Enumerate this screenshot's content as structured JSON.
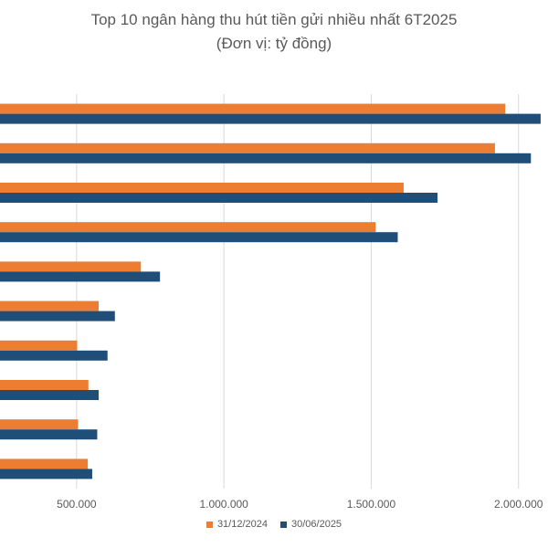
{
  "chart_data": {
    "type": "bar",
    "orientation": "horizontal",
    "title": "Top 10 ngân hàng thu hút tiền gửi nhiều nhất 6T2025",
    "subtitle": "(Đơn vị: tỷ đồng)",
    "xlabel": "",
    "ylabel": "",
    "xlim": [
      240000,
      2100000
    ],
    "x_ticks": [
      500000,
      1000000,
      1500000,
      2000000
    ],
    "x_tick_labels": [
      "500.000",
      "1.000.000",
      "1.500.000",
      "2.000.000"
    ],
    "grid": "vertical",
    "legend_position": "bottom",
    "categories": [
      "",
      "",
      "",
      "",
      "",
      "",
      "",
      "",
      "",
      ""
    ],
    "series": [
      {
        "name": "31/12/2024",
        "color": "#ED7D31",
        "values": [
          1955000,
          1920000,
          1610000,
          1515000,
          718000,
          575000,
          502000,
          540000,
          505000,
          538000
        ]
      },
      {
        "name": "30/06/2025",
        "color": "#1F4E79",
        "values": [
          2075000,
          2042000,
          1725000,
          1590000,
          783000,
          630000,
          605000,
          575000,
          570000,
          553000
        ]
      }
    ]
  }
}
